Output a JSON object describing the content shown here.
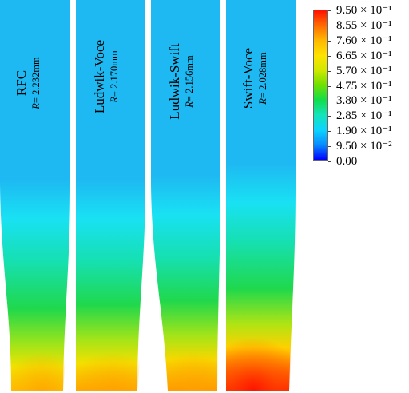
{
  "specimens": [
    {
      "name": "RFC",
      "r_value": "= 2.232mm"
    },
    {
      "name": "Ludwik-Voce",
      "r_value": "= 2.170mm"
    },
    {
      "name": "Ludwik-Swift",
      "r_value": "= 2.156mm"
    },
    {
      "name": "Swift-Voce",
      "r_value": "= 2.028mm"
    }
  ],
  "r_symbol": "R",
  "legend": {
    "labels": [
      "9.50 × 10⁻¹",
      "8.55 × 10⁻¹",
      "7.60 × 10⁻¹",
      "6.65 × 10⁻¹",
      "5.70 × 10⁻¹",
      "4.75 × 10⁻¹",
      "3.80 × 10⁻¹",
      "2.85 × 10⁻¹",
      "1.90 × 10⁻¹",
      "9.50 × 10⁻²",
      "0.00"
    ],
    "colors": [
      "#ff1000",
      "#ff6a00",
      "#ffb800",
      "#ffe200",
      "#d2e800",
      "#6fe000",
      "#12dd4a",
      "#14e4ba",
      "#0ed4ff",
      "#088cff",
      "#0000ff"
    ]
  }
}
